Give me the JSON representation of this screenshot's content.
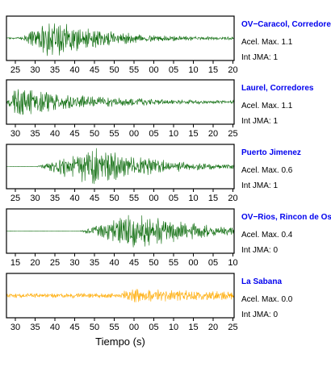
{
  "colors": {
    "trace": "#0b6b0b",
    "trace_low": "#ffaa00",
    "station_name": "#0000ee",
    "frame": "#000000"
  },
  "xlabel": "Tiempo (s)",
  "chart_data": [
    {
      "type": "line",
      "station": "OV−Caracol, Corredores",
      "acel": "Acel. Max. 1.1",
      "jma": "Int JMA: 1",
      "color": "trace",
      "tick_labels": [
        "25",
        "30",
        "35",
        "40",
        "45",
        "50",
        "55",
        "00",
        "05",
        "10",
        "15",
        "20"
      ],
      "envelope": {
        "noise": 0.05,
        "onset": 0.06,
        "peak": 0.2,
        "tail": 0.65,
        "max_amp": 1.0
      }
    },
    {
      "type": "line",
      "station": "Laurel, Corredores",
      "acel": "Acel. Max. 1.1",
      "jma": "Int JMA: 1",
      "color": "trace",
      "tick_labels": [
        "30",
        "35",
        "40",
        "45",
        "50",
        "55",
        "00",
        "05",
        "10",
        "15",
        "20",
        "25"
      ],
      "envelope": {
        "noise": 0.05,
        "onset": 0.0,
        "peak": 0.04,
        "tail": 0.9,
        "max_amp": 0.8
      }
    },
    {
      "type": "line",
      "station": "Puerto Jimenez",
      "acel": "Acel. Max. 0.6",
      "jma": "Int JMA: 1",
      "color": "trace",
      "tick_labels": [
        "25",
        "30",
        "35",
        "40",
        "45",
        "50",
        "55",
        "00",
        "05",
        "10",
        "15",
        "20"
      ],
      "envelope": {
        "noise": 0.01,
        "onset": 0.13,
        "peak": 0.38,
        "tail": 0.8,
        "max_amp": 1.0
      }
    },
    {
      "type": "line",
      "station": "OV−Rios, Rincon de Os",
      "acel": "Acel. Max. 0.4",
      "jma": "Int JMA: 0",
      "color": "trace",
      "tick_labels": [
        "15",
        "20",
        "25",
        "30",
        "35",
        "40",
        "45",
        "50",
        "55",
        "00",
        "05",
        "10"
      ],
      "envelope": {
        "noise": 0.01,
        "onset": 0.32,
        "peak": 0.58,
        "tail": 0.75,
        "max_amp": 1.0
      }
    },
    {
      "type": "line",
      "station": "La Sabana",
      "acel": "Acel. Max. 0.0",
      "jma": "Int JMA: 0",
      "color": "trace_low",
      "tick_labels": [
        "30",
        "35",
        "40",
        "45",
        "50",
        "55",
        "00",
        "05",
        "10",
        "15",
        "20",
        "25"
      ],
      "envelope": {
        "noise": 0.12,
        "onset": 0.48,
        "peak": 0.55,
        "tail": 1.6,
        "max_amp": 0.35
      }
    }
  ]
}
